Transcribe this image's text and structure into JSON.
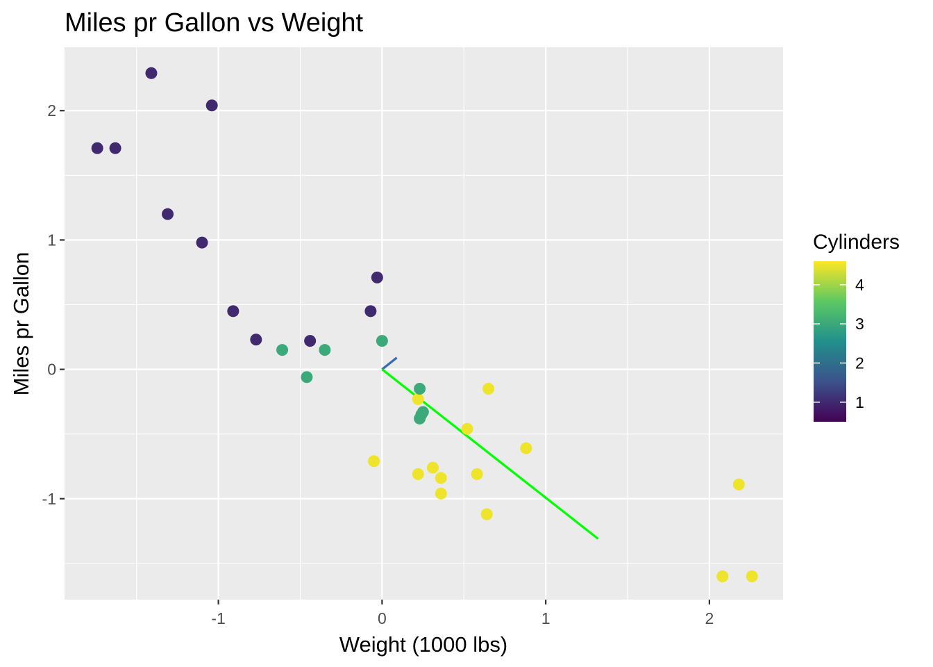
{
  "chart_data": {
    "type": "scatter",
    "title": "Miles pr Gallon vs Weight",
    "xlabel": "Weight (1000 lbs)",
    "ylabel": "Miles pr Gallon",
    "xlim": [
      -1.94,
      2.45
    ],
    "ylim": [
      -1.78,
      2.49
    ],
    "x_ticks": [
      -1,
      0,
      1,
      2
    ],
    "x_tick_labels": [
      "-1",
      "0",
      "1",
      "2"
    ],
    "y_ticks": [
      -1,
      0,
      1,
      2
    ],
    "y_tick_labels": [
      "-1",
      "0",
      "1",
      "2"
    ],
    "x_minor_ticks": [
      -1.5,
      -0.5,
      0.5,
      1.5
    ],
    "y_minor_ticks": [
      -1.5,
      -0.5,
      0.5,
      1.5
    ],
    "grid": true,
    "legend": {
      "title": "Cylinders",
      "placement": "right",
      "type": "colorbar",
      "range": [
        0.5,
        4.6
      ],
      "ticks": [
        1,
        2,
        3,
        4
      ],
      "tick_labels": [
        "1",
        "2",
        "3",
        "4"
      ],
      "colors": [
        "#440154",
        "#3b528b",
        "#21908c",
        "#5dc863",
        "#fde725"
      ]
    },
    "points": [
      {
        "x": -1.74,
        "y": 1.71,
        "cyl": 1
      },
      {
        "x": -1.63,
        "y": 1.71,
        "cyl": 1
      },
      {
        "x": -1.41,
        "y": 2.29,
        "cyl": 1
      },
      {
        "x": -1.04,
        "y": 2.04,
        "cyl": 1
      },
      {
        "x": -1.31,
        "y": 1.2,
        "cyl": 1
      },
      {
        "x": -1.1,
        "y": 0.98,
        "cyl": 1
      },
      {
        "x": -0.91,
        "y": 0.45,
        "cyl": 1
      },
      {
        "x": -0.77,
        "y": 0.23,
        "cyl": 1
      },
      {
        "x": -0.44,
        "y": 0.22,
        "cyl": 1
      },
      {
        "x": -0.07,
        "y": 0.45,
        "cyl": 1
      },
      {
        "x": -0.03,
        "y": 0.71,
        "cyl": 1
      },
      {
        "x": -0.61,
        "y": 0.15,
        "cyl": 3
      },
      {
        "x": -0.35,
        "y": 0.15,
        "cyl": 3
      },
      {
        "x": -0.46,
        "y": -0.06,
        "cyl": 3
      },
      {
        "x": 0.0,
        "y": 0.22,
        "cyl": 3
      },
      {
        "x": 0.22,
        "y": -0.23,
        "cyl": 4.5
      },
      {
        "x": 0.23,
        "y": -0.15,
        "cyl": 3
      },
      {
        "x": 0.25,
        "y": -0.33,
        "cyl": 3
      },
      {
        "x": 0.24,
        "y": -0.35,
        "cyl": 3
      },
      {
        "x": 0.23,
        "y": -0.38,
        "cyl": 3
      },
      {
        "x": 0.65,
        "y": -0.15,
        "cyl": 4.5
      },
      {
        "x": 0.52,
        "y": -0.46,
        "cyl": 4.5
      },
      {
        "x": 0.88,
        "y": -0.61,
        "cyl": 4.5
      },
      {
        "x": -0.05,
        "y": -0.71,
        "cyl": 4.5
      },
      {
        "x": 0.22,
        "y": -0.81,
        "cyl": 4.5
      },
      {
        "x": 0.31,
        "y": -0.76,
        "cyl": 4.5
      },
      {
        "x": 0.36,
        "y": -0.84,
        "cyl": 4.5
      },
      {
        "x": 0.58,
        "y": -0.81,
        "cyl": 4.5
      },
      {
        "x": 0.36,
        "y": -0.96,
        "cyl": 4.5
      },
      {
        "x": 0.64,
        "y": -1.12,
        "cyl": 4.5
      },
      {
        "x": 2.18,
        "y": -0.89,
        "cyl": 4.5
      },
      {
        "x": 2.08,
        "y": -1.6,
        "cyl": 4.5
      },
      {
        "x": 2.26,
        "y": -1.6,
        "cyl": 4.5
      }
    ],
    "lines": [
      {
        "name": "fit-line-short",
        "x": [
          0,
          0.09
        ],
        "y": [
          0,
          0.09
        ],
        "color": "#3b6bb3"
      },
      {
        "name": "fit-line-long",
        "x": [
          0,
          1.32
        ],
        "y": [
          0,
          -1.31
        ],
        "color": "#00ff00"
      }
    ]
  }
}
